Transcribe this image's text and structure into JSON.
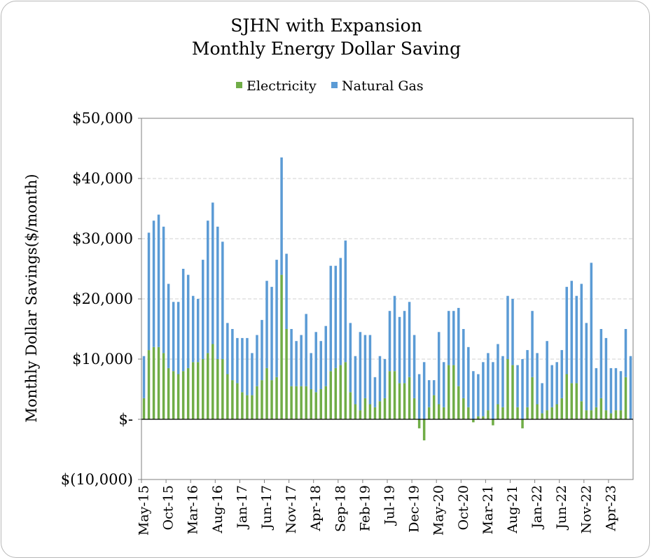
{
  "chart_data": {
    "type": "bar",
    "stacked": true,
    "title": "SJHN with Expansion",
    "subtitle": "Monthly Energy Dollar Saving",
    "ylabel": "Monthly Dollar Savings($/month)",
    "xlabel": "",
    "ylim": [
      -10000,
      50000
    ],
    "yticks": [
      {
        "value": 50000,
        "label": "$50,000"
      },
      {
        "value": 40000,
        "label": "$40,000"
      },
      {
        "value": 30000,
        "label": "$30,000"
      },
      {
        "value": 20000,
        "label": "$20,000"
      },
      {
        "value": 10000,
        "label": "$10,000"
      },
      {
        "value": 0,
        "label": "$-"
      },
      {
        "value": -10000,
        "label": "$(10,000)"
      }
    ],
    "grid": true,
    "legend_position": "top-center",
    "x_tick_labels": [
      {
        "index": 0,
        "label": "May-15"
      },
      {
        "index": 5,
        "label": "Oct-15"
      },
      {
        "index": 10,
        "label": "Mar-16"
      },
      {
        "index": 15,
        "label": "Aug-16"
      },
      {
        "index": 20,
        "label": "Jan-17"
      },
      {
        "index": 25,
        "label": "Jun-17"
      },
      {
        "index": 30,
        "label": "Nov-17"
      },
      {
        "index": 35,
        "label": "Apr-18"
      },
      {
        "index": 40,
        "label": "Sep-18"
      },
      {
        "index": 45,
        "label": "Feb-19"
      },
      {
        "index": 50,
        "label": "Jul-19"
      },
      {
        "index": 55,
        "label": "Dec-19"
      },
      {
        "index": 60,
        "label": "May-20"
      },
      {
        "index": 65,
        "label": "Oct-20"
      },
      {
        "index": 70,
        "label": "Mar-21"
      },
      {
        "index": 75,
        "label": "Aug-21"
      },
      {
        "index": 80,
        "label": "Jan-22"
      },
      {
        "index": 85,
        "label": "Jun-22"
      },
      {
        "index": 90,
        "label": "Nov-22"
      },
      {
        "index": 95,
        "label": "Apr-23"
      }
    ],
    "series": [
      {
        "name": "Electricity",
        "color": "#70ad47",
        "values": [
          3500,
          11500,
          12000,
          12000,
          11000,
          8500,
          8000,
          7500,
          8000,
          8500,
          9500,
          9500,
          10000,
          11000,
          12500,
          10000,
          10000,
          7500,
          6500,
          6000,
          4500,
          4000,
          4000,
          5500,
          6500,
          8500,
          6500,
          7000,
          24000,
          15000,
          5500,
          5500,
          5500,
          5500,
          5000,
          4500,
          5000,
          5500,
          8000,
          8500,
          9000,
          9500,
          4500,
          2500,
          1500,
          3500,
          2500,
          2000,
          3000,
          3500,
          8000,
          8000,
          6000,
          6000,
          7000,
          3500,
          -1500,
          -3500,
          2000,
          4000,
          2500,
          2000,
          9000,
          9000,
          5500,
          3500,
          2000,
          -500,
          500,
          500,
          1500,
          -1000,
          2500,
          2000,
          10000,
          9000,
          2000,
          -1500,
          2000,
          7000,
          2500,
          1000,
          1500,
          2000,
          2500,
          3500,
          7500,
          6000,
          6000,
          3000,
          1500,
          1500,
          2000,
          3500,
          1500,
          1000,
          1500,
          1500,
          7000,
          0
        ]
      },
      {
        "name": "Natural Gas",
        "color": "#5b9bd5",
        "values": [
          7000,
          19500,
          21000,
          22000,
          21000,
          14000,
          11500,
          12000,
          17000,
          15500,
          11000,
          10500,
          16500,
          22000,
          23500,
          22000,
          19500,
          8500,
          8500,
          7500,
          9000,
          9500,
          7000,
          8500,
          10000,
          14500,
          15500,
          19500,
          19500,
          12500,
          9500,
          7500,
          8500,
          12000,
          6000,
          10000,
          8000,
          10000,
          17500,
          17000,
          17800,
          20200,
          11500,
          8000,
          13000,
          10500,
          11500,
          5000,
          7500,
          6500,
          10000,
          12500,
          11000,
          12000,
          12500,
          10500,
          7500,
          9500,
          4500,
          2500,
          12000,
          7500,
          9000,
          9000,
          13000,
          11500,
          10000,
          8000,
          7000,
          9000,
          9500,
          9500,
          10000,
          8500,
          10500,
          11000,
          7000,
          10000,
          9500,
          11000,
          8500,
          5000,
          11500,
          7000,
          7000,
          8000,
          14500,
          17000,
          14500,
          19500,
          14500,
          24500,
          6500,
          11500,
          12000,
          7500,
          7000,
          6500,
          8000,
          10500
        ]
      }
    ]
  }
}
